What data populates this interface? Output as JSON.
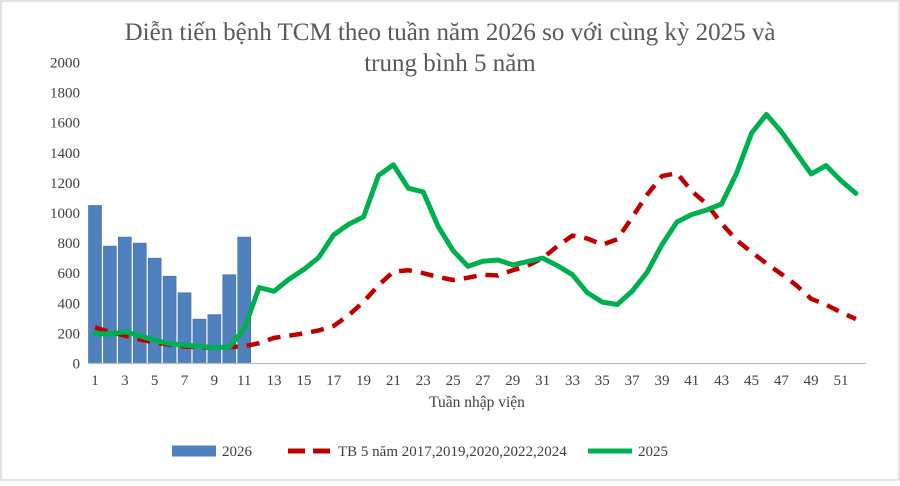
{
  "title": {
    "line1": "Diễn tiến bệnh TCM theo tuần năm 2026 so với cùng kỳ 2025 và",
    "line2": "trung bình 5 năm"
  },
  "chart_data": {
    "type": "combo-bar-line",
    "title": "Diễn tiến bệnh TCM theo tuần năm 2026 so với cùng kỳ 2025 và trung bình 5 năm",
    "xlabel": "Tuần nhập viện",
    "ylabel": "",
    "ylim": [
      0,
      2000
    ],
    "y_ticks": [
      0,
      200,
      400,
      600,
      800,
      1000,
      1200,
      1400,
      1600,
      1800,
      2000
    ],
    "x_ticks": [
      1,
      3,
      5,
      7,
      9,
      11,
      13,
      15,
      17,
      19,
      21,
      23,
      25,
      27,
      29,
      31,
      33,
      35,
      37,
      39,
      41,
      43,
      45,
      47,
      49,
      51
    ],
    "x_weeks_total": 52,
    "grid": false,
    "legend_position": "bottom",
    "series": [
      {
        "name": "2026",
        "type": "bar",
        "color": "#4E81BD",
        "edge_color": "#41709F",
        "weeks": [
          1,
          2,
          3,
          4,
          5,
          6,
          7,
          8,
          9,
          10,
          11
        ],
        "values": [
          1050,
          780,
          840,
          800,
          700,
          580,
          470,
          295,
          325,
          590,
          840
        ]
      },
      {
        "name": "TB 5 năm 2017,2019,2020,2022,2024",
        "type": "line",
        "dash": "dashed",
        "color": "#C00000",
        "values": [
          240,
          210,
          185,
          160,
          140,
          125,
          113,
          107,
          105,
          108,
          115,
          135,
          170,
          185,
          200,
          220,
          250,
          320,
          410,
          520,
          610,
          620,
          600,
          575,
          555,
          570,
          590,
          585,
          620,
          650,
          700,
          780,
          850,
          830,
          790,
          825,
          970,
          1120,
          1245,
          1265,
          1145,
          1060,
          930,
          820,
          740,
          665,
          595,
          520,
          430,
          390,
          340,
          295
        ]
      },
      {
        "name": "2025",
        "type": "line",
        "dash": "solid",
        "color": "#00B050",
        "values": [
          200,
          195,
          212,
          185,
          155,
          132,
          122,
          115,
          105,
          110,
          230,
          505,
          480,
          560,
          625,
          705,
          855,
          925,
          975,
          1250,
          1320,
          1165,
          1140,
          910,
          750,
          645,
          680,
          688,
          655,
          678,
          700,
          650,
          590,
          470,
          408,
          392,
          480,
          605,
          790,
          940,
          990,
          1020,
          1060,
          1265,
          1530,
          1655,
          1540,
          1400,
          1260,
          1315,
          1215,
          1130
        ]
      }
    ]
  },
  "colors": {
    "axis_text": "#404040",
    "title_text": "#595959",
    "axis_line": "#C0C0C0",
    "frame_border": "#D9D9D9",
    "background": "#FFFFFF"
  }
}
